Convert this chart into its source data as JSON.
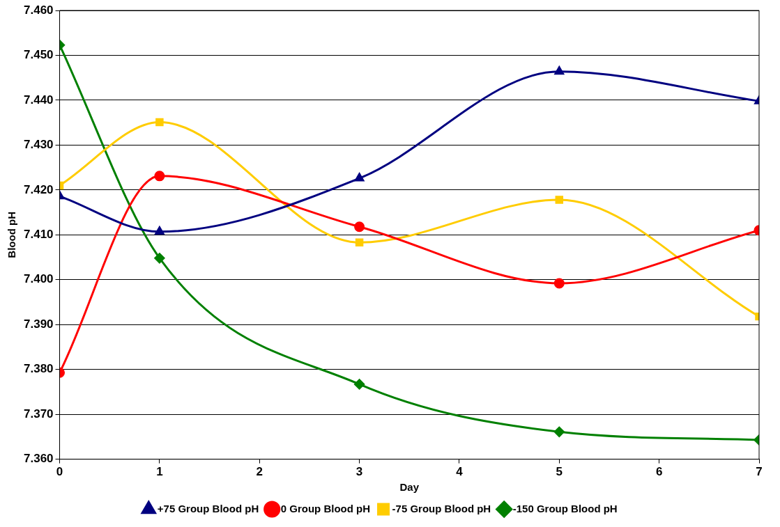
{
  "chart_data": {
    "type": "line",
    "xlabel": "Day",
    "ylabel": "Blood pH",
    "x": [
      0,
      1,
      3,
      5,
      7
    ],
    "xlim": [
      0,
      7
    ],
    "xticks": [
      0,
      1,
      2,
      3,
      4,
      5,
      6,
      7
    ],
    "ylim": [
      7.36,
      7.46
    ],
    "yticks": [
      {
        "value": 7.36,
        "label": "7.360"
      },
      {
        "value": 7.37,
        "label": "7.370"
      },
      {
        "value": 7.38,
        "label": "7.380"
      },
      {
        "value": 7.39,
        "label": "7.390"
      },
      {
        "value": 7.4,
        "label": "7.400"
      },
      {
        "value": 7.41,
        "label": "7.410"
      },
      {
        "value": 7.42,
        "label": "7.420"
      },
      {
        "value": 7.43,
        "label": "7.430"
      },
      {
        "value": 7.44,
        "label": "7.440"
      },
      {
        "value": 7.45,
        "label": "7.450"
      },
      {
        "value": 7.46,
        "label": "7.460"
      }
    ],
    "grid": "y",
    "legend": "bottom",
    "line_style": "solid",
    "series": [
      {
        "name": "+75 Group Blood pH",
        "color": "#000080",
        "marker": "triangle",
        "values": [
          7.4186,
          7.4107,
          7.4226,
          7.4464,
          7.4398
        ]
      },
      {
        "name": "0 Group Blood pH",
        "color": "#ff0000",
        "marker": "circle",
        "values": [
          7.3793,
          7.4231,
          7.4118,
          7.3992,
          7.411
        ]
      },
      {
        "name": "-75 Group Blood pH",
        "color": "#ffcc00",
        "marker": "square",
        "values": [
          7.421,
          7.4351,
          7.4083,
          7.4178,
          7.3918
        ]
      },
      {
        "name": "-150 Group Blood pH",
        "color": "#008000",
        "marker": "diamond",
        "values": [
          7.4523,
          7.4048,
          7.3767,
          7.3661,
          7.3643
        ]
      }
    ]
  }
}
